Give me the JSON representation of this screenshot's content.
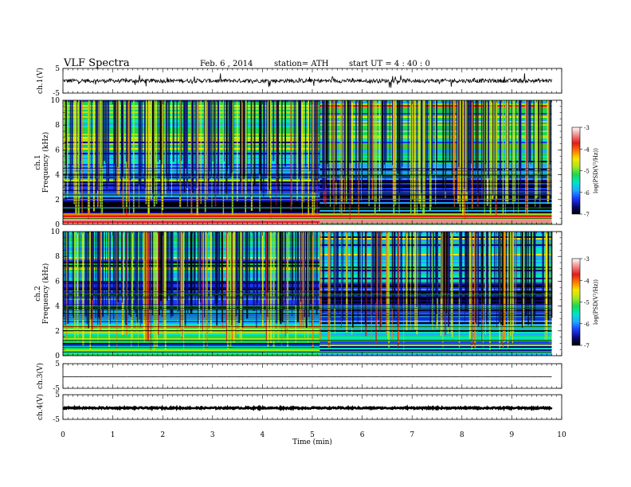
{
  "header": {
    "title": "VLF  Spectra",
    "date": "Feb. 6  , 2014",
    "station": "station= ATH",
    "start": "start  UT  =   4 : 40 : 0"
  },
  "colorbar": {
    "label": "log(PSD(V²/Hz))",
    "ticks": [
      "-3",
      "-4",
      "-5",
      "-6",
      "-7"
    ],
    "colors": [
      "#ffffff",
      "#f28a8a",
      "#e01b1b",
      "#ff7a00",
      "#f5e600",
      "#a8e61e",
      "#19d94f",
      "#00e5c8",
      "#21a8ff",
      "#1a3bff",
      "#0b0b7a",
      "#000000"
    ]
  },
  "chart_data": [
    {
      "type": "line",
      "title": "",
      "ylabel": "ch.1(V)",
      "ylim": [
        -5,
        5
      ],
      "yticks": [
        "5",
        "-5"
      ],
      "series": [
        {
          "values_note": "",
          "mean": 0.0,
          "noise_amplitude": 0.8,
          "spike_amplitude": 2.5
        }
      ]
    },
    {
      "type": "heatmap",
      "ylabel": "ch.1\nFrequency (kHz)",
      "ylabel_lines": [
        "ch.1",
        "Frequency (kHz)"
      ],
      "ylim": [
        0,
        10
      ],
      "yticks": [
        "0",
        "2",
        "4",
        "6",
        "8",
        "10"
      ],
      "xlim": [
        0,
        9.8
      ],
      "z_range": [
        -7,
        -3
      ],
      "bands": [
        {
          "f_low": 0.0,
          "f_high": 0.5,
          "level": -3.6
        },
        {
          "f_low": 0.5,
          "f_high": 1.0,
          "level": -4.6
        },
        {
          "f_low": 1.0,
          "f_high": 2.0,
          "level": -6.6
        },
        {
          "f_low": 2.0,
          "f_high": 3.5,
          "level": -6.4
        },
        {
          "f_low": 3.5,
          "f_high": 5.0,
          "level": -6.0
        },
        {
          "f_low": 5.0,
          "f_high": 6.0,
          "level": -5.6
        },
        {
          "f_low": 6.0,
          "f_high": 10.0,
          "level": -5.0
        }
      ]
    },
    {
      "type": "heatmap",
      "ylabel_lines": [
        "ch.2",
        "Frequency (kHz)"
      ],
      "ylim": [
        0,
        10
      ],
      "yticks": [
        "0",
        "2",
        "4",
        "6",
        "8",
        "10"
      ],
      "xlim": [
        0,
        9.8
      ],
      "z_range": [
        -7,
        -3
      ],
      "bands": [
        {
          "f_low": 0.0,
          "f_high": 1.2,
          "level": -5.4
        },
        {
          "f_low": 1.2,
          "f_high": 2.5,
          "level": -5.2
        },
        {
          "f_low": 2.5,
          "f_high": 4.0,
          "level": -5.9
        },
        {
          "f_low": 4.0,
          "f_high": 6.0,
          "level": -6.4
        },
        {
          "f_low": 6.0,
          "f_high": 10.0,
          "level": -5.6
        }
      ]
    },
    {
      "type": "line",
      "ylabel": "ch.3(V)",
      "ylim": [
        -5,
        5
      ],
      "yticks": [
        "5",
        "-5"
      ],
      "series": [
        {
          "mean": -0.3,
          "noise_amplitude": 0.05
        }
      ]
    },
    {
      "type": "line",
      "ylabel": "ch.4(V)",
      "ylim": [
        -5,
        5
      ],
      "yticks": [
        "5",
        "-5"
      ],
      "series": [
        {
          "mean": -0.4,
          "noise_amplitude": 0.3
        }
      ]
    }
  ],
  "xaxis": {
    "label": "Time  (min)",
    "xlim": [
      0,
      10
    ],
    "ticks": [
      "0",
      "1",
      "2",
      "3",
      "4",
      "5",
      "6",
      "7",
      "8",
      "9",
      "10"
    ],
    "data_end": 9.8,
    "change_time": 5.15
  }
}
